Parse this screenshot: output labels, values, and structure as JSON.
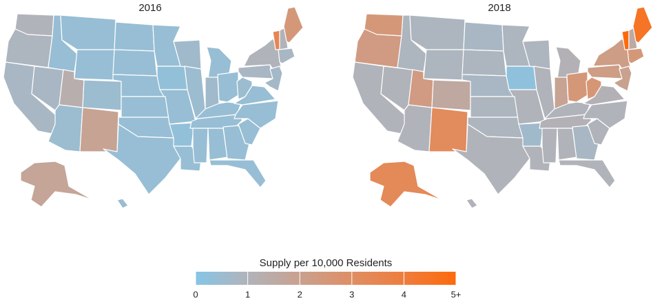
{
  "chart_data": [
    {
      "type": "choropleth",
      "title": "2016",
      "values": [
        1.0,
        0.9,
        0.8,
        0.8,
        0.4,
        0.4,
        0.4,
        1.3,
        0.5,
        0.5,
        1.9,
        0.4,
        0.4,
        0.4,
        0.4,
        0.4,
        0.4,
        0.4,
        0.3,
        0.4,
        0.3,
        0.4,
        0.6,
        0.5,
        0.4,
        0.6,
        0.4,
        0.4,
        0.4,
        0.4,
        0.4,
        0.4,
        0.4,
        0.4,
        0.4,
        0.4,
        0.5,
        0.8,
        1.0,
        3.5,
        1.0,
        2.5,
        0.8,
        0.7,
        1.8,
        0.5
      ]
    },
    {
      "type": "choropleth",
      "title": "2018",
      "values": [
        2.5,
        2.3,
        1.0,
        1.0,
        0.9,
        0.9,
        0.9,
        2.3,
        1.6,
        1.0,
        3.2,
        0.8,
        0.9,
        0.8,
        0.9,
        0.9,
        1.0,
        0.9,
        0.2,
        1.0,
        0.6,
        1.0,
        0.9,
        1.0,
        1.1,
        1.9,
        2.5,
        1.0,
        1.1,
        1.0,
        1.0,
        0.8,
        1.0,
        1.0,
        1.0,
        1.1,
        2.6,
        2.2,
        2.2,
        5.0,
        1.5,
        4.5,
        2.5,
        2.0,
        3.3,
        1.0
      ]
    }
  ],
  "legend": {
    "title": "Supply per 10,000 Residents",
    "lim": [
      0,
      5
    ],
    "ticks": [
      0,
      1,
      2,
      3,
      4,
      {
        "value": 5,
        "label": "5+"
      }
    ],
    "colors": [
      "#86c5e6",
      "#b1b3ba",
      "#c9a18f",
      "#df8e63",
      "#ee7d3e",
      "#fd6a0b"
    ]
  }
}
